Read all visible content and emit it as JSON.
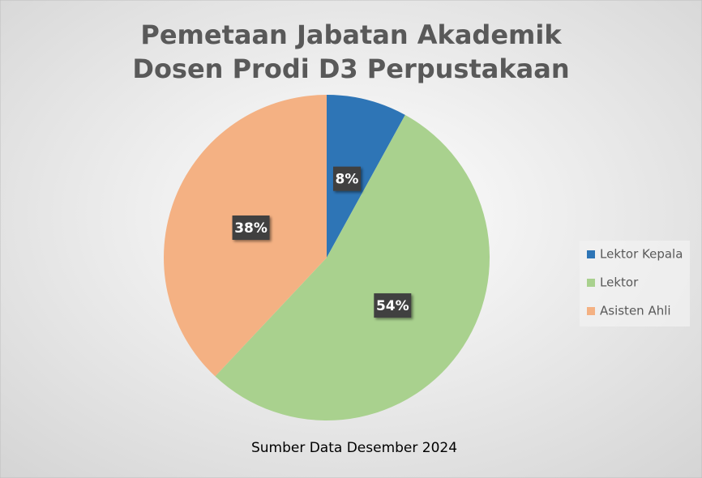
{
  "chart_data": {
    "type": "pie",
    "title": [
      "Pemetaan Jabatan Akademik",
      "Dosen Prodi D3 Perpustakaan"
    ],
    "caption": "Sumber Data Desember 2024",
    "categories": [
      "Lektor Kepala",
      "Lektor",
      "Asisten Ahli"
    ],
    "values": [
      8,
      54,
      38
    ],
    "value_labels": [
      "8%",
      "54%",
      "38%"
    ],
    "colors": [
      "#2E75B6",
      "#A9D18E",
      "#F4B183"
    ],
    "legend": "right"
  }
}
